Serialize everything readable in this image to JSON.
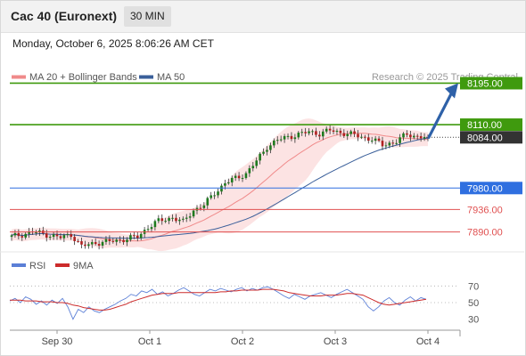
{
  "header": {
    "title": "Cac 40 (Euronext)",
    "timeframe": "30 MIN",
    "timestamp": "Monday, October 6, 2025 8:06:26 AM CET"
  },
  "legend": {
    "ma20": "MA 20 + Bollinger Bands",
    "ma50": "MA 50",
    "credit": "Research © 2025 Trading Central",
    "rsi": "RSI",
    "nine_ma": "9MA"
  },
  "colors": {
    "ma20": "#f08a8a",
    "ma50": "#3a5f9a",
    "band_fill": "#fbdede",
    "resistance": "#3f9a0e",
    "current": "#333333",
    "pivot": "#2f6fe0",
    "support": "#e05050",
    "arrow": "#2e61a8",
    "candle_up": "#1e7a1e",
    "candle_down": "#b02020",
    "rsi_line": "#5b7fd6",
    "rsi_ma": "#cc2b2b"
  },
  "chart_data": [
    {
      "type": "candlestick",
      "title": "Cac 40 (Euronext)",
      "ylim": [
        7840,
        8205
      ],
      "x_ticks": [
        "Sep 30",
        "Oct 1",
        "Oct 2",
        "Oct 3",
        "Oct 4"
      ],
      "levels": [
        {
          "value": 8195.0,
          "label": "8195.00",
          "kind": "resistance"
        },
        {
          "value": 8110.0,
          "label": "8110.00",
          "kind": "resistance"
        },
        {
          "value": 8084.0,
          "label": "8084.00",
          "kind": "current"
        },
        {
          "value": 7980.0,
          "label": "7980.00",
          "kind": "pivot"
        },
        {
          "value": 7936.0,
          "label": "7936.00",
          "kind": "support"
        },
        {
          "value": 7890.0,
          "label": "7890.00",
          "kind": "support"
        }
      ],
      "price_path": [
        [
          0,
          7880
        ],
        [
          6,
          7890
        ],
        [
          10,
          7885
        ],
        [
          14,
          7878
        ],
        [
          17,
          7885
        ],
        [
          20,
          7860
        ],
        [
          24,
          7868
        ],
        [
          28,
          7870
        ],
        [
          32,
          7875
        ],
        [
          36,
          7880
        ],
        [
          39,
          7900
        ],
        [
          42,
          7912
        ],
        [
          46,
          7920
        ],
        [
          49,
          7910
        ],
        [
          52,
          7935
        ],
        [
          55,
          7945
        ],
        [
          58,
          7970
        ],
        [
          61,
          7990
        ],
        [
          64,
          8000
        ],
        [
          67,
          8010
        ],
        [
          70,
          8035
        ],
        [
          73,
          8065
        ],
        [
          76,
          8078
        ],
        [
          79,
          8085
        ],
        [
          82,
          8090
        ],
        [
          85,
          8095
        ],
        [
          88,
          8092
        ],
        [
          91,
          8098
        ],
        [
          94,
          8094
        ],
        [
          97,
          8090
        ],
        [
          100,
          8085
        ],
        [
          103,
          8080
        ],
        [
          106,
          8068
        ],
        [
          110,
          8076
        ],
        [
          113,
          8090
        ],
        [
          116,
          8086
        ],
        [
          118,
          8084
        ]
      ],
      "projection": {
        "from": 8084.0,
        "to": 8195.0
      }
    },
    {
      "type": "line",
      "title": "RSI",
      "ylim": [
        20,
        80
      ],
      "y_ticks": [
        "70",
        "50",
        "30"
      ],
      "series": [
        {
          "name": "RSI",
          "values": [
            52,
            55,
            50,
            57,
            54,
            48,
            52,
            47,
            53,
            49,
            55,
            45,
            30,
            42,
            38,
            45,
            40,
            38,
            42,
            45,
            48,
            52,
            55,
            60,
            58,
            64,
            62,
            66,
            60,
            63,
            58,
            61,
            65,
            68,
            64,
            60,
            58,
            62,
            66,
            64,
            67,
            65,
            63,
            66,
            68,
            64,
            67,
            65,
            68,
            69,
            66,
            62,
            58,
            55,
            60,
            57,
            54,
            58,
            60,
            62,
            59,
            56,
            60,
            63,
            66,
            62,
            58,
            54,
            45,
            40,
            45,
            52,
            56,
            50,
            47,
            53,
            57,
            52,
            56,
            54
          ]
        },
        {
          "name": "9MA",
          "values": [
            53,
            53,
            53,
            52,
            52,
            52,
            51,
            51,
            51,
            50,
            50,
            49,
            47,
            46,
            44,
            43,
            42,
            41,
            41,
            42,
            44,
            46,
            48,
            51,
            53,
            55,
            57,
            59,
            60,
            61,
            61,
            61,
            62,
            62,
            62,
            62,
            62,
            62,
            62,
            62,
            63,
            63,
            64,
            64,
            65,
            65,
            65,
            65,
            66,
            66,
            66,
            65,
            64,
            62,
            61,
            60,
            59,
            58,
            58,
            58,
            59,
            59,
            59,
            60,
            61,
            61,
            60,
            59,
            56,
            53,
            50,
            48,
            47,
            48,
            49,
            50,
            51,
            52,
            53,
            54
          ]
        }
      ]
    }
  ]
}
